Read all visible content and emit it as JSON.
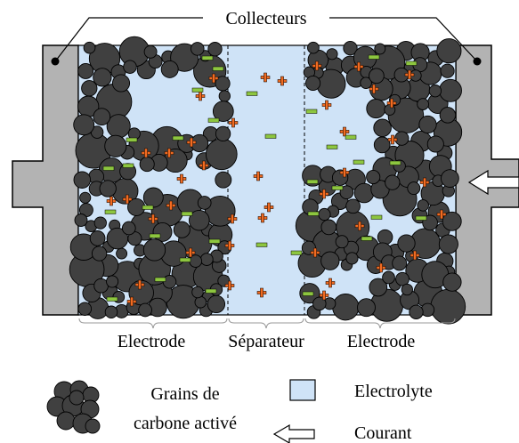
{
  "labels": {
    "collectors": "Collecteurs",
    "electrode_left": "Electrode",
    "separator": "Séparateur",
    "electrode_right": "Electrode"
  },
  "legend": {
    "grains_line1": "Grains de",
    "grains_line2": "carbone activé",
    "electrolyte": "Electrolyte",
    "current": "Courant"
  },
  "colors": {
    "collector": "#b3b3b3",
    "electrolyte": "#cfe3f7",
    "grain": "#404040",
    "positive_ion": "#f26b21",
    "negative_ion": "#8dc63f"
  },
  "symbols": {
    "positive_ion": "plus-icon",
    "negative_ion": "minus-icon",
    "current": "arrow-left-icon"
  }
}
